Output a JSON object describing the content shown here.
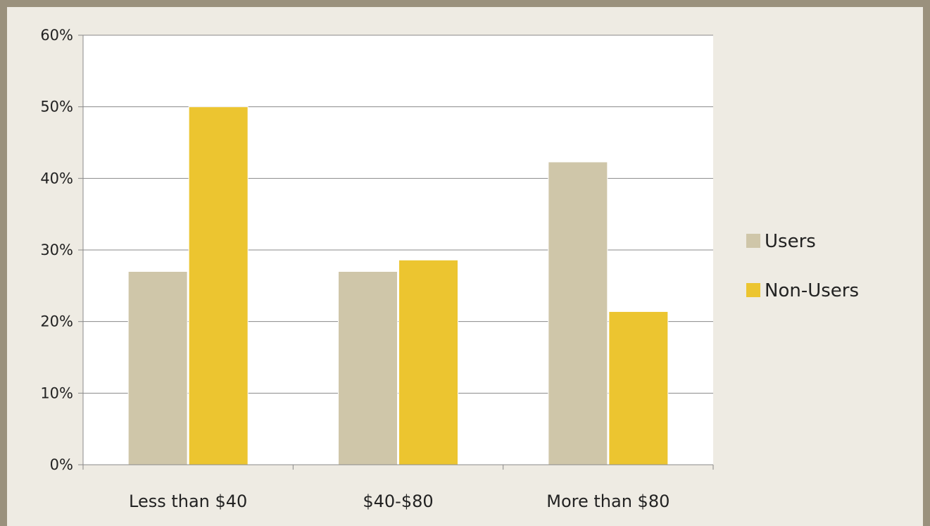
{
  "chart_data": {
    "type": "bar",
    "categories": [
      "Less than $40",
      "$40-$80",
      "More than $80"
    ],
    "series": [
      {
        "name": "Users",
        "values": [
          27,
          27,
          42.3
        ],
        "color": "#cfc6a9"
      },
      {
        "name": "Non-Users",
        "values": [
          50,
          28.6,
          21.4
        ],
        "color": "#ecc530"
      }
    ],
    "y_ticks": [
      "0%",
      "10%",
      "20%",
      "30%",
      "40%",
      "50%",
      "60%"
    ],
    "ylim": [
      0,
      60
    ],
    "grid": true,
    "legend_position": "right"
  }
}
